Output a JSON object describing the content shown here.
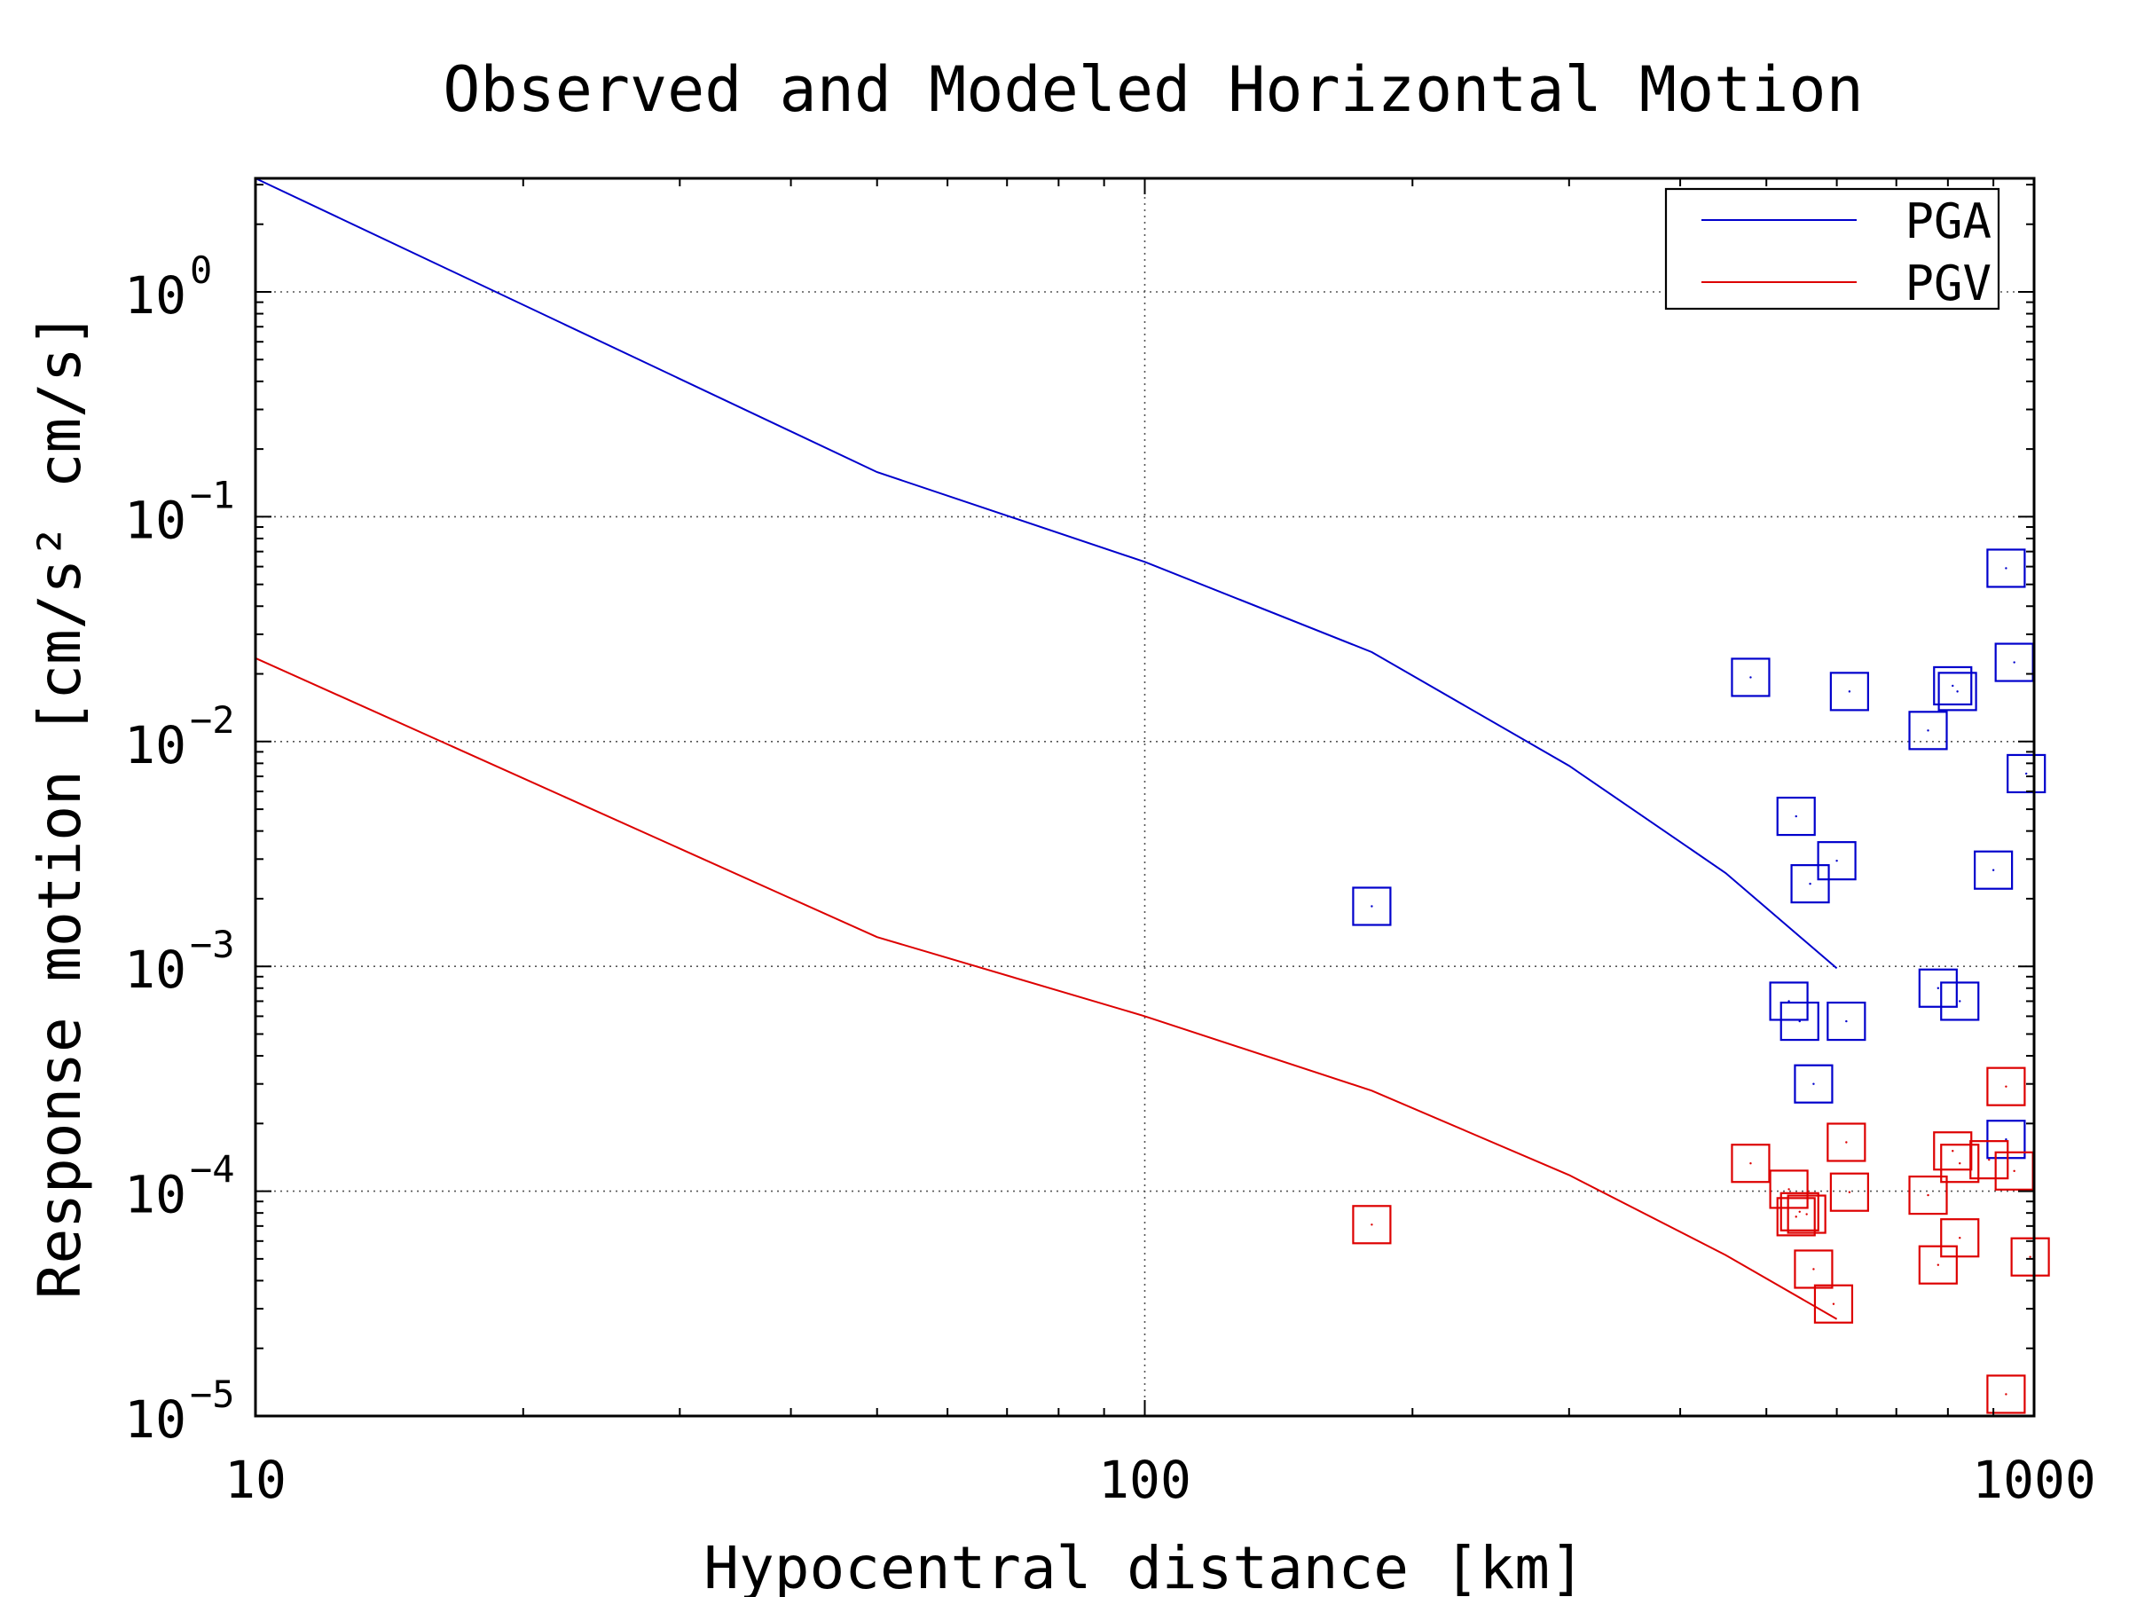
{
  "chart_data": {
    "type": "scatter",
    "title": "Observed and Modeled Horizontal Motion",
    "xlabel": "Hypocentral distance [km]",
    "ylabel": "Response motion [cm/s² cm/s]",
    "x_scale": "log",
    "y_scale": "log",
    "xlim": [
      10,
      1000
    ],
    "ylim": [
      1e-05,
      3.2
    ],
    "x_ticks": [
      {
        "value": 10,
        "label": "10"
      },
      {
        "value": 100,
        "label": "100"
      },
      {
        "value": 1000,
        "label": "1000"
      }
    ],
    "y_ticks": [
      {
        "value": 1,
        "base": "10",
        "exp": "0"
      },
      {
        "value": 0.1,
        "base": "10",
        "exp": "−1"
      },
      {
        "value": 0.01,
        "base": "10",
        "exp": "−2"
      },
      {
        "value": 0.001,
        "base": "10",
        "exp": "−3"
      },
      {
        "value": 0.0001,
        "base": "10",
        "exp": "−4"
      },
      {
        "value": 1e-05,
        "base": "10",
        "exp": "−5"
      }
    ],
    "grid": true,
    "legend_position": "top-right",
    "colors": {
      "pga": "#0000cc",
      "pgv": "#dd0000",
      "grid": "#555555"
    },
    "lines": [
      {
        "name": "PGA",
        "color": "#0000cc",
        "points": [
          [
            10,
            3.2
          ],
          [
            50,
            0.158
          ],
          [
            100,
            0.063
          ],
          [
            180,
            0.025
          ],
          [
            300,
            0.0078
          ],
          [
            450,
            0.0026
          ],
          [
            600,
            0.00098
          ]
        ]
      },
      {
        "name": "PGV",
        "color": "#dd0000",
        "points": [
          [
            10,
            0.0235
          ],
          [
            50,
            0.00135
          ],
          [
            100,
            0.0006
          ],
          [
            180,
            0.00028
          ],
          [
            300,
            0.000118
          ],
          [
            450,
            5.2e-05
          ],
          [
            600,
            2.7e-05
          ]
        ]
      }
    ],
    "markers": [
      {
        "series": "PGA",
        "color": "#0000cc",
        "marker": "square",
        "points": [
          [
            180,
            0.00185
          ],
          [
            480,
            0.0193
          ],
          [
            540,
            0.00465
          ],
          [
            530,
            0.0007
          ],
          [
            545,
            0.00057
          ],
          [
            560,
            0.00233
          ],
          [
            565,
            0.0003
          ],
          [
            600,
            0.00295
          ],
          [
            615,
            0.00057
          ],
          [
            620,
            0.0167
          ],
          [
            760,
            0.0112
          ],
          [
            780,
            0.0008
          ],
          [
            810,
            0.0177
          ],
          [
            820,
            0.0167
          ],
          [
            825,
            0.0007
          ],
          [
            900,
            0.00268
          ],
          [
            930,
            0.059
          ],
          [
            930,
            0.00017
          ],
          [
            950,
            0.0225
          ],
          [
            980,
            0.0072
          ]
        ]
      },
      {
        "series": "PGV",
        "color": "#dd0000",
        "marker": "square",
        "points": [
          [
            180,
            7.1e-05
          ],
          [
            480,
            0.000133
          ],
          [
            530,
            0.000102
          ],
          [
            540,
            7.7e-05
          ],
          [
            545,
            8.1e-05
          ],
          [
            555,
            7.9e-05
          ],
          [
            565,
            4.5e-05
          ],
          [
            595,
            3.15e-05
          ],
          [
            615,
            0.000165
          ],
          [
            620,
            9.9e-05
          ],
          [
            760,
            9.6e-05
          ],
          [
            780,
            4.7e-05
          ],
          [
            810,
            0.000151
          ],
          [
            825,
            6.2e-05
          ],
          [
            825,
            0.000133
          ],
          [
            890,
            0.000138
          ],
          [
            930,
            0.000292
          ],
          [
            930,
            1.25e-05
          ],
          [
            950,
            0.000123
          ],
          [
            990,
            5.1e-05
          ]
        ]
      }
    ]
  }
}
